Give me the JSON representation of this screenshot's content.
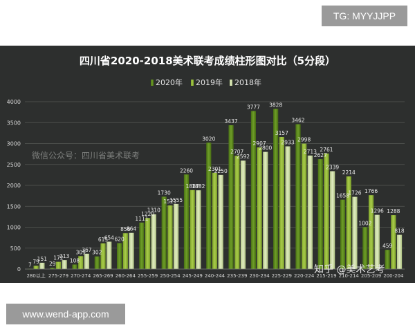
{
  "watermarks": {
    "top_tag": "TG: MYYJJPP",
    "bottom_tag": "www.wend-app.com",
    "chart_watermark": "微信公众号：四川省美术联考",
    "zhihu_watermark": "知乎 @美术艺考"
  },
  "colors": {
    "background": "#2d2f2e",
    "grid": "#555855",
    "axis_text": "#d8d8d8",
    "series_2020": "#5d8a1e",
    "series_2019": "#97bf3a",
    "series_2018": "#cfe0a6"
  },
  "chart_data": {
    "type": "bar",
    "title": "四川省2020-2018美术联考成绩柱形图对比（5分段）",
    "legend_position": "top-center",
    "grid": true,
    "ylim": [
      0,
      4000
    ],
    "yticks": [
      0,
      500,
      1000,
      1500,
      2000,
      2500,
      3000,
      3500,
      4000
    ],
    "categories": [
      "280以上",
      "275-279",
      "270-274",
      "265-269",
      "260-264",
      "255-259",
      "250-254",
      "245-249",
      "240-244",
      "235-239",
      "230-234",
      "225-229",
      "220-224",
      "215-219",
      "210-214",
      "205-209",
      "200-204"
    ],
    "series": [
      {
        "name": "2020年",
        "values": [
          7,
          29,
          108,
          302,
          620,
          1111,
          1730,
          2260,
          3020,
          3437,
          3777,
          3828,
          3462,
          2627,
          1658,
          1002,
          459
        ]
      },
      {
        "name": "2019年",
        "values": [
          79,
          172,
          309,
          615,
          856,
          1220,
          1521,
          1887,
          2301,
          2707,
          2907,
          3157,
          2998,
          2761,
          2214,
          1766,
          1288
        ]
      },
      {
        "name": "2018年",
        "values": [
          151,
          213,
          367,
          654,
          864,
          1310,
          1555,
          1882,
          2250,
          2592,
          2800,
          2933,
          2713,
          2339,
          1726,
          1296,
          818
        ]
      }
    ]
  }
}
